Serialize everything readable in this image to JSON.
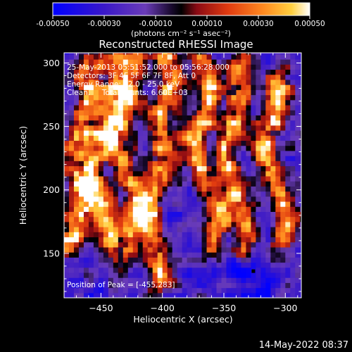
{
  "colorbar": {
    "tick_labels": [
      "-0.00050",
      "-0.00030",
      "-0.00010",
      "0.00010",
      "0.00030",
      "0.00050"
    ],
    "units_label": "(photons cm⁻² s⁻¹ asec⁻²)",
    "range": [
      -0.0005,
      0.0005
    ]
  },
  "chart_data": {
    "type": "heatmap",
    "title": "Reconstructed RHESSI Image",
    "xlabel": "Heliocentric X (arcsec)",
    "ylabel": "Heliocentric Y (arcsec)",
    "xlim": [
      -480,
      -287
    ],
    "ylim": [
      115,
      308
    ],
    "x_ticks": [
      -450,
      -400,
      -350,
      -300
    ],
    "y_ticks": [
      150,
      200,
      250,
      300
    ],
    "x_tick_labels": [
      "−450",
      "−400",
      "−350",
      "−300"
    ],
    "y_tick_labels": [
      "150",
      "200",
      "250",
      "300"
    ],
    "color_scale": [
      "#0000ff",
      "#3a18c8",
      "#6a3cb8",
      "#1a0a30",
      "#000000",
      "#8a0a14",
      "#e03a10",
      "#ff8a20",
      "#ffd040",
      "#ffffff"
    ],
    "annotations": [
      "25-May-2013 05:51:52.000 to 05:56:28.000",
      "Detectors: 3F 4F 5F 6F 7F 8F, Att 0",
      "Energy Range: 12.0 - 25.0 keV",
      "Clean.     Total counts: 6.60E+03"
    ],
    "peak_label": "Position of Peak = [-455,283]",
    "peak_position": [
      -455,
      283
    ],
    "minimum_marker": [
      -326,
      136
    ],
    "bright_ridges": [
      {
        "points": [
          [
            -462,
            296
          ],
          [
            -458,
            276
          ],
          [
            -464,
            256
          ],
          [
            -470,
            234
          ],
          [
            -468,
            214
          ],
          [
            -462,
            196
          ],
          [
            -470,
            176
          ],
          [
            -476,
            156
          ]
        ],
        "peak": 0.00046
      },
      {
        "points": [
          [
            -442,
            304
          ],
          [
            -436,
            286
          ],
          [
            -440,
            268
          ],
          [
            -446,
            248
          ],
          [
            -454,
            226
          ],
          [
            -458,
            204
          ],
          [
            -452,
            184
          ],
          [
            -444,
            162
          ]
        ],
        "peak": 0.00048
      },
      {
        "points": [
          [
            -420,
            300
          ],
          [
            -424,
            280
          ],
          [
            -432,
            262
          ],
          [
            -438,
            244
          ],
          [
            -434,
            222
          ],
          [
            -426,
            204
          ],
          [
            -420,
            186
          ],
          [
            -426,
            166
          ],
          [
            -430,
            146
          ]
        ],
        "peak": 0.00044
      },
      {
        "points": [
          [
            -398,
            306
          ],
          [
            -392,
            286
          ],
          [
            -398,
            268
          ],
          [
            -402,
            250
          ],
          [
            -396,
            230
          ],
          [
            -404,
            212
          ],
          [
            -410,
            192
          ],
          [
            -412,
            172
          ],
          [
            -404,
            150
          ],
          [
            -400,
            130
          ]
        ],
        "peak": 0.00047
      },
      {
        "points": [
          [
            -366,
            300
          ],
          [
            -360,
            280
          ],
          [
            -364,
            262
          ],
          [
            -372,
            246
          ],
          [
            -376,
            230
          ],
          [
            -366,
            212
          ],
          [
            -356,
            194
          ],
          [
            -352,
            176
          ],
          [
            -360,
            158
          ]
        ],
        "peak": 0.00045
      },
      {
        "points": [
          [
            -338,
            298
          ],
          [
            -334,
            280
          ],
          [
            -340,
            262
          ],
          [
            -346,
            244
          ],
          [
            -350,
            226
          ],
          [
            -344,
            206
          ],
          [
            -336,
            188
          ],
          [
            -330,
            170
          ],
          [
            -334,
            152
          ]
        ],
        "peak": 0.00046
      },
      {
        "points": [
          [
            -308,
            290
          ],
          [
            -304,
            270
          ],
          [
            -312,
            252
          ],
          [
            -318,
            232
          ],
          [
            -310,
            212
          ],
          [
            -300,
            192
          ],
          [
            -298,
            172
          ],
          [
            -306,
            154
          ]
        ],
        "peak": 0.00049
      }
    ]
  },
  "footer": {
    "timestamp": "14-May-2022 08:37"
  }
}
